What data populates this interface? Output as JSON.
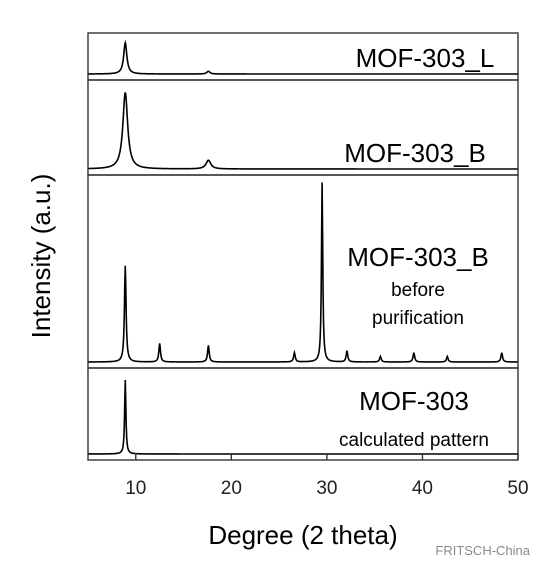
{
  "chart_data": {
    "type": "line",
    "xlabel": "Degree (2 theta)",
    "ylabel": "Intensity (a.u.)",
    "xlim": [
      5,
      50
    ],
    "xticks": [
      10,
      20,
      30,
      40,
      50
    ],
    "grid": false,
    "legend": "none",
    "line_color": "#000000",
    "panels": [
      {
        "name": "MOF-303_L",
        "sublabel": "",
        "peaks": [
          {
            "x": 8.9,
            "h": 0.8,
            "w": 0.2
          },
          {
            "x": 17.6,
            "h": 0.07,
            "w": 0.2
          }
        ]
      },
      {
        "name": "MOF-303_B",
        "sublabel": "",
        "peaks": [
          {
            "x": 8.9,
            "h": 0.88,
            "w": 0.3
          },
          {
            "x": 17.6,
            "h": 0.1,
            "w": 0.3
          }
        ]
      },
      {
        "name": "MOF-303_B",
        "sublabel": "before purification",
        "peaks": [
          {
            "x": 8.9,
            "h": 0.52,
            "w": 0.1
          },
          {
            "x": 12.5,
            "h": 0.1,
            "w": 0.1
          },
          {
            "x": 17.6,
            "h": 0.09,
            "w": 0.1
          },
          {
            "x": 26.6,
            "h": 0.05,
            "w": 0.1
          },
          {
            "x": 29.5,
            "h": 0.97,
            "w": 0.08
          },
          {
            "x": 32.1,
            "h": 0.06,
            "w": 0.1
          },
          {
            "x": 35.6,
            "h": 0.03,
            "w": 0.1
          },
          {
            "x": 39.1,
            "h": 0.05,
            "w": 0.1
          },
          {
            "x": 42.6,
            "h": 0.03,
            "w": 0.1
          },
          {
            "x": 48.3,
            "h": 0.05,
            "w": 0.1
          }
        ]
      },
      {
        "name": "MOF-303",
        "sublabel": "calculated pattern",
        "peaks": [
          {
            "x": 8.9,
            "h": 0.88,
            "w": 0.08
          }
        ]
      }
    ]
  },
  "watermark": "FRITSCH-China"
}
